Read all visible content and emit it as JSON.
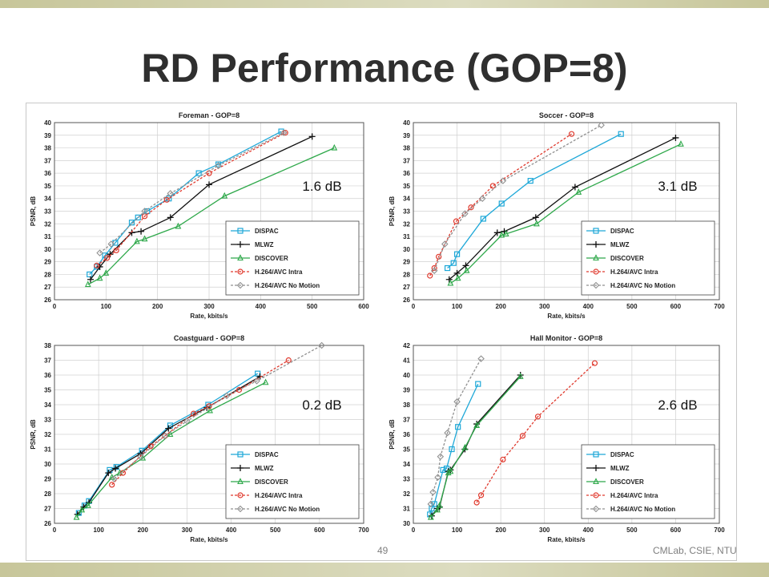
{
  "slide": {
    "title": "RD Performance (GOP=8)",
    "page_number": "49",
    "credit": "CMLab, CSIE, NTU"
  },
  "colors": {
    "DISPAC": "#1ea8d8",
    "MLWZ": "#111111",
    "DISCOVER": "#2ea84a",
    "H.264/AVC Intra": "#e03a2e",
    "H.264/AVC No Motion": "#909090"
  },
  "chart_data": [
    {
      "type": "line",
      "title": "Foreman - GOP=8",
      "xlabel": "Rate, kbits/s",
      "ylabel": "PSNR, dB",
      "xlim": [
        0,
        600
      ],
      "ylim": [
        26,
        40
      ],
      "xticks": [
        0,
        100,
        200,
        300,
        400,
        500,
        600
      ],
      "yticks": [
        26,
        27,
        28,
        29,
        30,
        31,
        32,
        33,
        34,
        35,
        36,
        37,
        38,
        39,
        40
      ],
      "legend_position": "bottom-right",
      "annotation": "1.6 dB",
      "series": [
        {
          "name": "DISPAC",
          "x": [
            68,
            82,
            98,
            118,
            150,
            162,
            180,
            222,
            280,
            318,
            440
          ],
          "y": [
            28.0,
            28.6,
            29.5,
            30.5,
            32.1,
            32.5,
            33.0,
            34.0,
            36.0,
            36.7,
            39.3
          ]
        },
        {
          "name": "MLWZ",
          "x": [
            70,
            88,
            108,
            150,
            168,
            225,
            300,
            500
          ],
          "y": [
            27.6,
            28.6,
            29.6,
            31.3,
            31.4,
            32.5,
            35.1,
            38.9
          ]
        },
        {
          "name": "DISCOVER",
          "x": [
            65,
            88,
            100,
            160,
            175,
            240,
            330,
            543
          ],
          "y": [
            27.2,
            27.7,
            28.1,
            30.6,
            30.8,
            31.8,
            34.2,
            38.0
          ]
        },
        {
          "name": "H.264/AVC Intra",
          "x": [
            82,
            102,
            120,
            175,
            218,
            300,
            448
          ],
          "y": [
            28.7,
            29.3,
            29.9,
            32.6,
            33.9,
            36.0,
            39.2
          ]
        },
        {
          "name": "H.264/AVC No Motion",
          "x": [
            88,
            110,
            175,
            225,
            318,
            445
          ],
          "y": [
            29.7,
            30.4,
            33.0,
            34.4,
            36.6,
            39.2
          ]
        }
      ]
    },
    {
      "type": "line",
      "title": "Soccer - GOP=8",
      "xlabel": "Rate, kbits/s",
      "ylabel": "PSNR, dB",
      "xlim": [
        0,
        700
      ],
      "ylim": [
        26,
        40
      ],
      "xticks": [
        0,
        100,
        200,
        300,
        400,
        500,
        600,
        700
      ],
      "yticks": [
        26,
        27,
        28,
        29,
        30,
        31,
        32,
        33,
        34,
        35,
        36,
        37,
        38,
        39,
        40
      ],
      "legend_position": "bottom-right",
      "annotation": "3.1 dB",
      "series": [
        {
          "name": "DISPAC",
          "x": [
            78,
            92,
            100,
            160,
            202,
            268,
            475
          ],
          "y": [
            28.5,
            28.9,
            29.6,
            32.4,
            33.6,
            35.4,
            39.1
          ]
        },
        {
          "name": "MLWZ",
          "x": [
            82,
            100,
            120,
            192,
            208,
            280,
            370,
            600
          ],
          "y": [
            27.6,
            28.1,
            28.7,
            31.3,
            31.4,
            32.5,
            34.9,
            38.8
          ]
        },
        {
          "name": "DISCOVER",
          "x": [
            85,
            102,
            122,
            202,
            212,
            282,
            378,
            612
          ],
          "y": [
            27.3,
            27.7,
            28.3,
            31.1,
            31.2,
            32.0,
            34.5,
            38.3
          ]
        },
        {
          "name": "H.264/AVC Intra",
          "x": [
            38,
            48,
            58,
            98,
            132,
            182,
            362
          ],
          "y": [
            27.9,
            28.5,
            29.4,
            32.2,
            33.3,
            35.0,
            39.1
          ]
        },
        {
          "name": "H.264/AVC No Motion",
          "x": [
            48,
            72,
            118,
            158,
            205,
            430
          ],
          "y": [
            28.3,
            30.4,
            32.8,
            34.0,
            35.4,
            39.8
          ]
        }
      ]
    },
    {
      "type": "line",
      "title": "Coastguard - GOP=8",
      "xlabel": "Rate, kbits/s",
      "ylabel": "PSNR, dB",
      "xlim": [
        0,
        700
      ],
      "ylim": [
        26,
        38
      ],
      "xticks": [
        0,
        100,
        200,
        300,
        400,
        500,
        600,
        700
      ],
      "yticks": [
        26,
        27,
        28,
        29,
        30,
        31,
        32,
        33,
        34,
        35,
        36,
        37,
        38
      ],
      "legend_position": "bottom-right",
      "annotation": "0.2 dB",
      "series": [
        {
          "name": "DISPAC",
          "x": [
            55,
            68,
            78,
            125,
            140,
            198,
            262,
            348,
            460
          ],
          "y": [
            26.7,
            27.2,
            27.5,
            29.6,
            29.8,
            30.9,
            32.6,
            34.0,
            36.1
          ]
        },
        {
          "name": "MLWZ",
          "x": [
            52,
            66,
            78,
            122,
            138,
            195,
            258,
            345,
            465
          ],
          "y": [
            26.6,
            27.1,
            27.4,
            29.4,
            29.7,
            30.7,
            32.4,
            33.8,
            35.9
          ]
        },
        {
          "name": "DISCOVER",
          "x": [
            50,
            62,
            76,
            130,
            148,
            200,
            262,
            352,
            478
          ],
          "y": [
            26.4,
            26.9,
            27.2,
            29.1,
            29.4,
            30.4,
            32.0,
            33.6,
            35.5
          ]
        },
        {
          "name": "H.264/AVC Intra",
          "x": [
            130,
            155,
            218,
            250,
            315,
            350,
            418,
            530
          ],
          "y": [
            28.6,
            29.4,
            31.2,
            31.9,
            33.4,
            33.9,
            35.0,
            37.0
          ]
        },
        {
          "name": "H.264/AVC No Motion",
          "x": [
            135,
            195,
            250,
            300,
            390,
            458,
            605
          ],
          "y": [
            29.0,
            30.5,
            31.9,
            32.9,
            34.6,
            35.6,
            38.0
          ]
        }
      ]
    },
    {
      "type": "line",
      "title": "Hall Monitor - GOP=8",
      "xlabel": "Rate, kbits/s",
      "ylabel": "PSNR, dB",
      "xlim": [
        0,
        700
      ],
      "ylim": [
        30,
        42
      ],
      "xticks": [
        0,
        100,
        200,
        300,
        400,
        500,
        600,
        700
      ],
      "yticks": [
        30,
        31,
        32,
        33,
        34,
        35,
        36,
        37,
        38,
        39,
        40,
        41,
        42
      ],
      "legend_position": "bottom-right",
      "annotation": "2.6 dB",
      "series": [
        {
          "name": "DISPAC",
          "x": [
            38,
            42,
            48,
            68,
            76,
            88,
            102,
            148
          ],
          "y": [
            30.6,
            31.0,
            31.3,
            33.6,
            33.7,
            35.0,
            36.5,
            39.4
          ]
        },
        {
          "name": "MLWZ",
          "x": [
            42,
            55,
            60,
            80,
            85,
            118,
            145,
            245
          ],
          "y": [
            30.5,
            31.0,
            31.1,
            33.5,
            33.6,
            35.0,
            36.7,
            40.0
          ]
        },
        {
          "name": "DISCOVER",
          "x": [
            40,
            55,
            60,
            80,
            85,
            118,
            145,
            245
          ],
          "y": [
            30.4,
            30.9,
            31.2,
            33.4,
            33.5,
            35.1,
            36.6,
            39.9
          ]
        },
        {
          "name": "H.264/AVC Intra",
          "x": [
            145,
            155,
            205,
            250,
            285,
            415
          ],
          "y": [
            31.4,
            31.9,
            34.3,
            35.9,
            37.2,
            40.8
          ]
        },
        {
          "name": "H.264/AVC No Motion",
          "x": [
            40,
            45,
            56,
            62,
            78,
            100,
            155
          ],
          "y": [
            31.3,
            32.1,
            33.1,
            34.5,
            36.1,
            38.2,
            41.1
          ]
        }
      ]
    }
  ]
}
